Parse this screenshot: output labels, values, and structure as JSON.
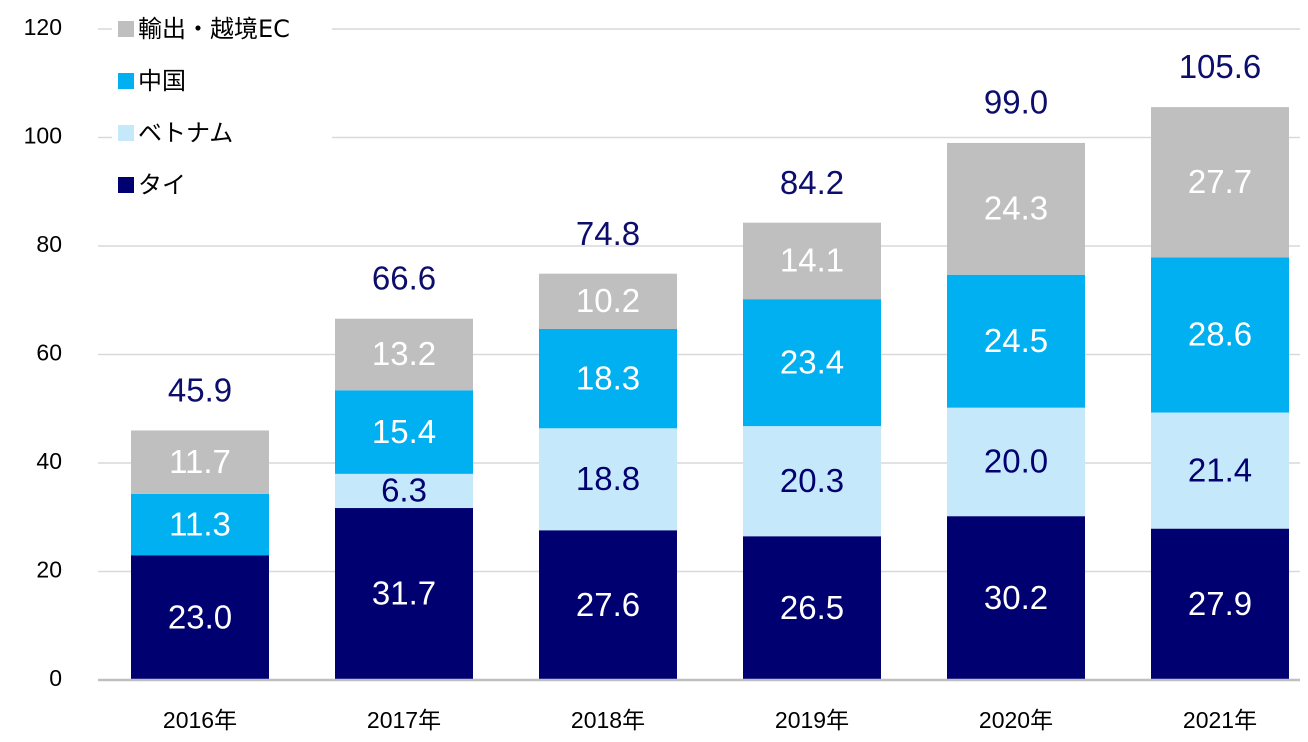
{
  "chart_data": {
    "type": "stacked_bar",
    "categories": [
      "2016年",
      "2017年",
      "2018年",
      "2019年",
      "2020年",
      "2021年"
    ],
    "series": [
      {
        "name": "タイ",
        "color": "#000070",
        "label_color": "#ffffff",
        "values": [
          23.0,
          31.7,
          27.6,
          26.5,
          30.2,
          27.9
        ],
        "value_labels": [
          "23.0",
          "31.7",
          "27.6",
          "26.5",
          "30.2",
          "27.9"
        ]
      },
      {
        "name": "ベトナム",
        "color": "#c5e8fa",
        "label_color": "#000070",
        "values": [
          null,
          6.3,
          18.8,
          20.3,
          20.0,
          21.4
        ],
        "value_labels": [
          null,
          "6.3",
          "18.8",
          "20.3",
          "20.0",
          "21.4"
        ]
      },
      {
        "name": "中国",
        "color": "#00b0f0",
        "label_color": "#ffffff",
        "values": [
          11.3,
          15.4,
          18.3,
          23.4,
          24.5,
          28.6
        ],
        "value_labels": [
          "11.3",
          "15.4",
          "18.3",
          "23.4",
          "24.5",
          "28.6"
        ]
      },
      {
        "name": "輸出・越境EC",
        "color": "#bfbfbf",
        "label_color": "#ffffff",
        "values": [
          11.7,
          13.2,
          10.2,
          14.1,
          24.3,
          27.7
        ],
        "value_labels": [
          "11.7",
          "13.2",
          "10.2",
          "14.1",
          "24.3",
          "27.7"
        ]
      }
    ],
    "totals": [
      45.9,
      66.6,
      74.8,
      84.2,
      99.0,
      105.6
    ],
    "total_labels": [
      "45.9",
      "66.6",
      "74.8",
      "84.2",
      "99.0",
      "105.6"
    ],
    "total_color": "#0d0d6b",
    "ylim": [
      0,
      120
    ],
    "yticks": [
      0,
      20,
      40,
      60,
      80,
      100,
      120
    ],
    "grid": true,
    "legend": "top-left"
  }
}
